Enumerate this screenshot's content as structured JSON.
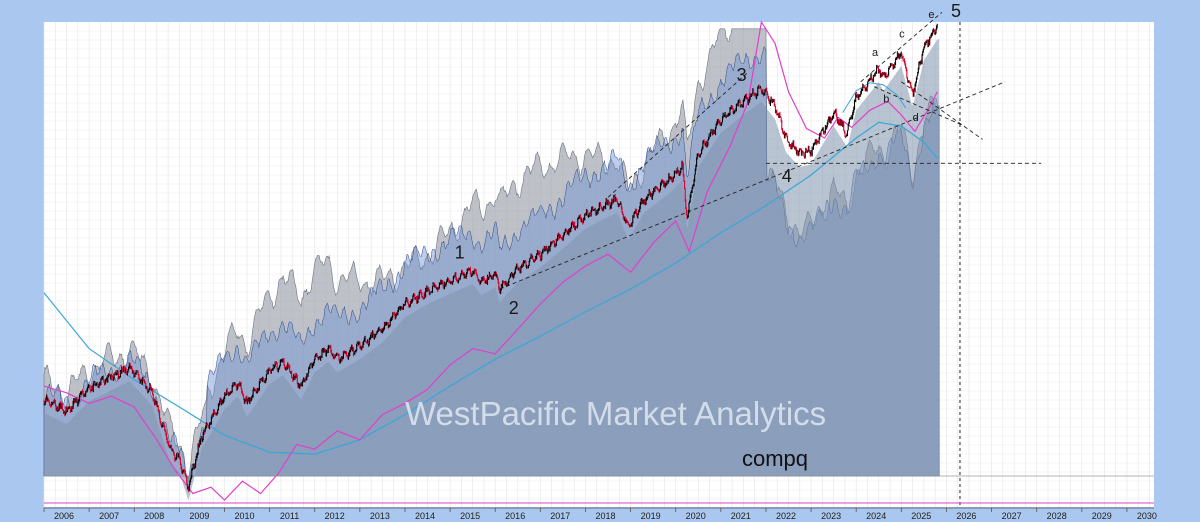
{
  "chart_data": {
    "type": "line",
    "ticker": "compq",
    "watermark": "WestPacific Market Analytics",
    "x_axis": {
      "years": [
        "2006",
        "2007",
        "2008",
        "2009",
        "2010",
        "2011",
        "2012",
        "2013",
        "2014",
        "2015",
        "2016",
        "2017",
        "2018",
        "2019",
        "2020",
        "2021",
        "2022",
        "2023",
        "2024",
        "2025",
        "2026",
        "2027",
        "2028",
        "2029",
        "2030"
      ],
      "range": [
        2006,
        2030.6
      ]
    },
    "y_scale": "log",
    "y_range": [
      1200,
      24000
    ],
    "grid": true,
    "price_series": {
      "x": [
        2006.0,
        2006.5,
        2007.0,
        2007.5,
        2007.9,
        2008.4,
        2008.8,
        2009.0,
        2009.2,
        2009.5,
        2010.0,
        2010.3,
        2010.5,
        2011.0,
        2011.3,
        2011.7,
        2012.0,
        2012.3,
        2012.5,
        2013.0,
        2013.5,
        2014.0,
        2014.5,
        2015.0,
        2015.5,
        2015.7,
        2016.0,
        2016.1,
        2016.5,
        2017.0,
        2017.5,
        2018.0,
        2018.7,
        2018.95,
        2019.3,
        2019.9,
        2020.15,
        2020.25,
        2020.5,
        2021.0,
        2021.5,
        2021.9,
        2022.2,
        2022.45,
        2022.75,
        2023.0,
        2023.5,
        2023.8,
        2024.0,
        2024.5,
        2024.6,
        2025.0,
        2025.25,
        2025.5,
        2025.8
      ],
      "y": [
        2250,
        2100,
        2420,
        2600,
        2750,
        2350,
        1650,
        1550,
        1300,
        1800,
        2300,
        2500,
        2200,
        2700,
        2850,
        2450,
        2900,
        3100,
        2900,
        3150,
        3500,
        4100,
        4450,
        4750,
        5050,
        4700,
        4950,
        4500,
        5100,
        5600,
        6300,
        7150,
        7900,
        6650,
        7900,
        9000,
        9700,
        7050,
        10500,
        13000,
        14600,
        15800,
        14200,
        11500,
        10500,
        10700,
        13600,
        11900,
        15000,
        17900,
        16900,
        19800,
        15300,
        20500,
        23400
      ]
    },
    "wave_labels": [
      {
        "label": "1",
        "x": 2015.1,
        "y": 5450
      },
      {
        "label": "2",
        "x": 2016.3,
        "y": 3850
      },
      {
        "label": "3",
        "x": 2021.35,
        "y": 16600
      },
      {
        "label": "4",
        "x": 2022.35,
        "y": 8800
      },
      {
        "label": "5",
        "x": 2026.1,
        "y": 24800
      },
      {
        "label": "a",
        "x": 2024.35,
        "y": 19400
      },
      {
        "label": "b",
        "x": 2024.6,
        "y": 14500
      },
      {
        "label": "c",
        "x": 2024.95,
        "y": 21800
      },
      {
        "label": "d",
        "x": 2025.25,
        "y": 12900
      },
      {
        "label": "e",
        "x": 2025.6,
        "y": 24600
      }
    ],
    "colors": {
      "price_up": "#000000",
      "price_down": "#d6002a",
      "magenta_line": "#e040c8",
      "cyan_line": "#39a6d8",
      "gray_band": "#9ba1ab",
      "blue_band": "#6f93d4",
      "background": "#a9c7ef"
    }
  }
}
